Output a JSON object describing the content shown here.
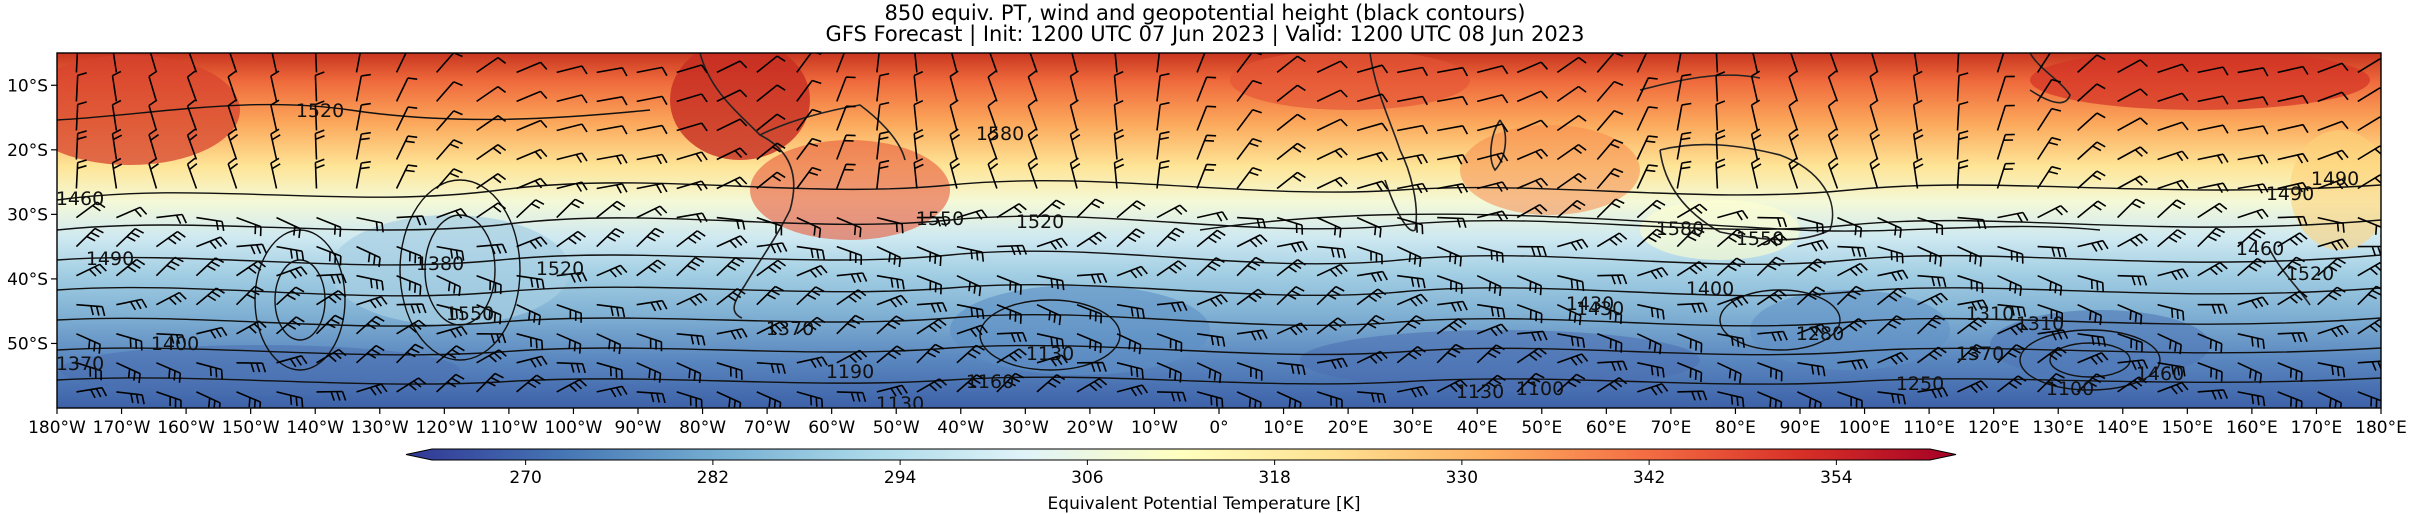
{
  "header": {
    "title_line1": "850 equiv. PT, wind and geopotential height (black contours)",
    "title_line2": "GFS Forecast | Init: 1200 UTC 07 Jun 2023 | Valid: 1200 UTC 08 Jun 2023"
  },
  "map": {
    "projection": "PlateCarree",
    "lon_range": [
      -180,
      180
    ],
    "lat_range": [
      -60,
      -5
    ],
    "lat_ticks": [
      "10°S",
      "20°S",
      "30°S",
      "40°S",
      "50°S"
    ],
    "lon_ticks": [
      "180°W",
      "170°W",
      "160°W",
      "150°W",
      "140°W",
      "130°W",
      "120°W",
      "110°W",
      "100°W",
      "90°W",
      "80°W",
      "70°W",
      "60°W",
      "50°W",
      "40°W",
      "30°W",
      "20°W",
      "10°W",
      "0°",
      "10°E",
      "20°E",
      "30°E",
      "40°E",
      "50°E",
      "60°E",
      "70°E",
      "80°E",
      "90°E",
      "100°E",
      "110°E",
      "120°E",
      "130°E",
      "140°E",
      "150°E",
      "160°E",
      "170°E",
      "180°E"
    ],
    "contour_labels": [
      "1520",
      "1580",
      "1460",
      "1490",
      "1550",
      "1520",
      "1380",
      "1550",
      "1370",
      "1400",
      "1520",
      "1580",
      "1550",
      "1400",
      "1430",
      "1490",
      "1460",
      "1310",
      "1280",
      "1250",
      "1190",
      "1160",
      "1130",
      "1130",
      "1100",
      "1430",
      "1370",
      "1100",
      "1130",
      "1370",
      "1460",
      "1520",
      "1490",
      "1310"
    ]
  },
  "colorbar": {
    "label": "Equivalent Potential Temperature [K]",
    "ticks": [
      "270",
      "282",
      "294",
      "306",
      "318",
      "330",
      "342",
      "354"
    ],
    "min": 264,
    "max": 360,
    "cmap": "RdYlBu_r",
    "extend": "both"
  },
  "colors": {
    "cold": "#313695",
    "cool": "#74add1",
    "neutral": "#ffffbf",
    "warm": "#fdae61",
    "hot": "#a50026"
  }
}
